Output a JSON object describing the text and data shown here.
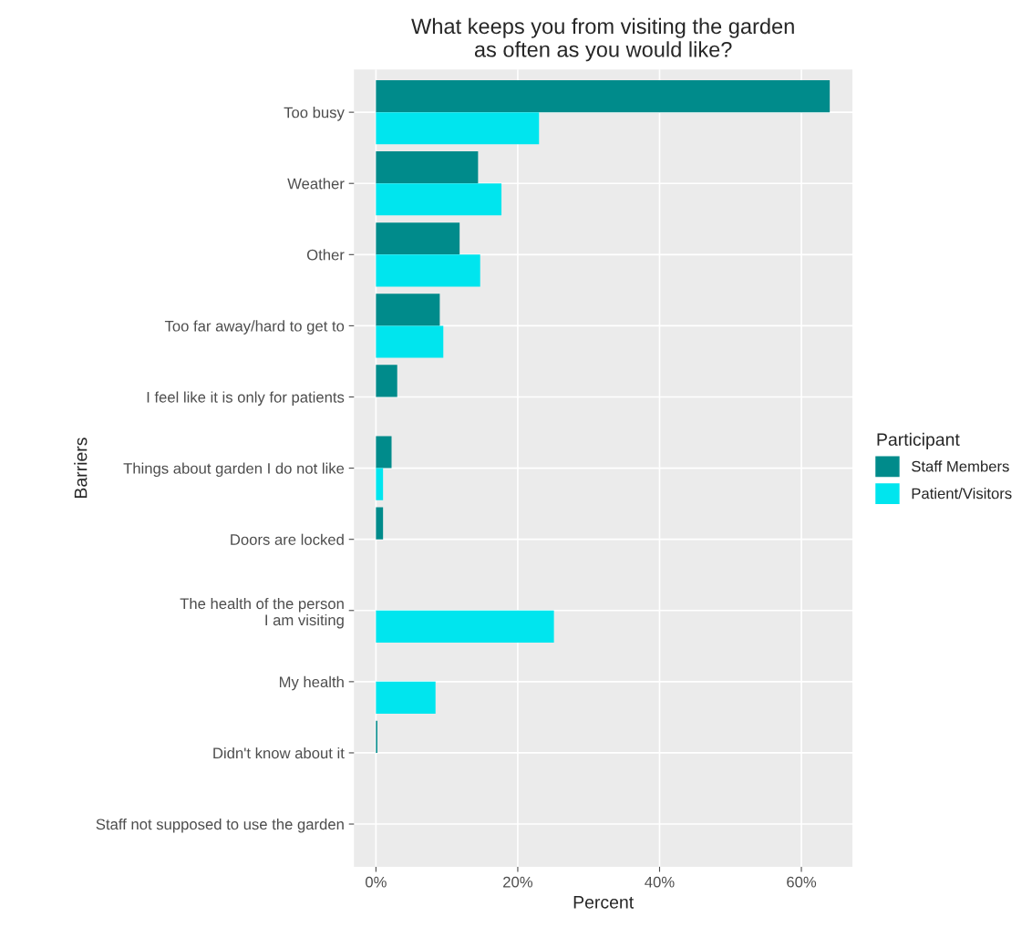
{
  "chart_data": {
    "type": "bar",
    "orientation": "horizontal",
    "title": "What keeps you from visiting the garden\nas often as you would like?",
    "xlabel": "Percent",
    "ylabel": "Barriers",
    "legend_title": "Participant",
    "legend": "right",
    "grid": true,
    "categories": [
      "Too busy",
      "Weather",
      "Other",
      "Too far away/hard to get to",
      "I feel like it is only for patients",
      "Things about garden I do not like",
      "Doors are locked",
      "The health of the person\n I am visiting",
      "My health",
      "Didn't know about it",
      "Staff not supposed to use the garden"
    ],
    "series": [
      {
        "name": "Staff Members",
        "color": "#008b8b",
        "values": [
          64.0,
          14.4,
          11.8,
          9.0,
          3.0,
          2.2,
          1.0,
          null,
          null,
          0.2,
          null
        ]
      },
      {
        "name": "Patient/Visitors",
        "color": "#00e5ee",
        "values": [
          23.0,
          17.7,
          14.7,
          9.5,
          null,
          1.0,
          null,
          25.1,
          8.4,
          null,
          null
        ]
      }
    ],
    "xlim": [
      -3.1,
      67.2
    ],
    "xticks": [
      {
        "value": 0,
        "label": "0%"
      },
      {
        "value": 20,
        "label": "20%"
      },
      {
        "value": 40,
        "label": "40%"
      },
      {
        "value": 60,
        "label": "60%"
      }
    ]
  }
}
